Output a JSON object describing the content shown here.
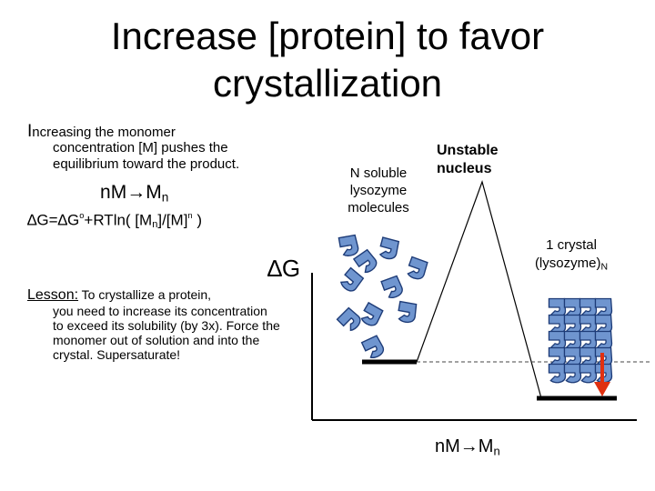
{
  "title_line1": "Increase [protein] to favor",
  "title_line2": "crystallization",
  "intro": {
    "first_letter": "I",
    "first_rest": "ncreasing the monomer",
    "rest": "concentration [M] pushes the equilibrium toward the product."
  },
  "equation1": {
    "lhs": "n",
    "M": "M",
    "arrow": "→",
    "M2": "M",
    "sub": "n"
  },
  "equation2": {
    "delta": "∆",
    "part1": "G=",
    "delta2": "∆",
    "part2": "G",
    "sup_o": "o",
    "part3": "+RTln( [M",
    "sub_n": "n",
    "part4": "]/[M]",
    "sup_n": "n",
    "part5": " )"
  },
  "lesson": {
    "head": "Lesson:",
    "first": " To crystallize a protein,",
    "rest": "you need to increase its concentration to exceed its solubility (by 3x).  Force the monomer out of solution and into the crystal. Supersaturate!"
  },
  "deltaG": "∆G",
  "labels": {
    "soluble": "N soluble lysozyme molecules",
    "unstable": "Unstable nucleus",
    "crystal_line1": "1 crystal",
    "crystal_line2": "(lysozyme)",
    "crystal_sub": "N"
  },
  "bottom_reaction": {
    "lhs": "nM→M",
    "sub": "n"
  },
  "colors": {
    "protein_fill": "#6f95cf",
    "protein_stroke": "#1e3c78",
    "arrow": "#e03010",
    "line": "#000000",
    "dashed": "#444444"
  },
  "icons": [
    "lysozyme-molecule-icon",
    "down-arrow-icon"
  ]
}
